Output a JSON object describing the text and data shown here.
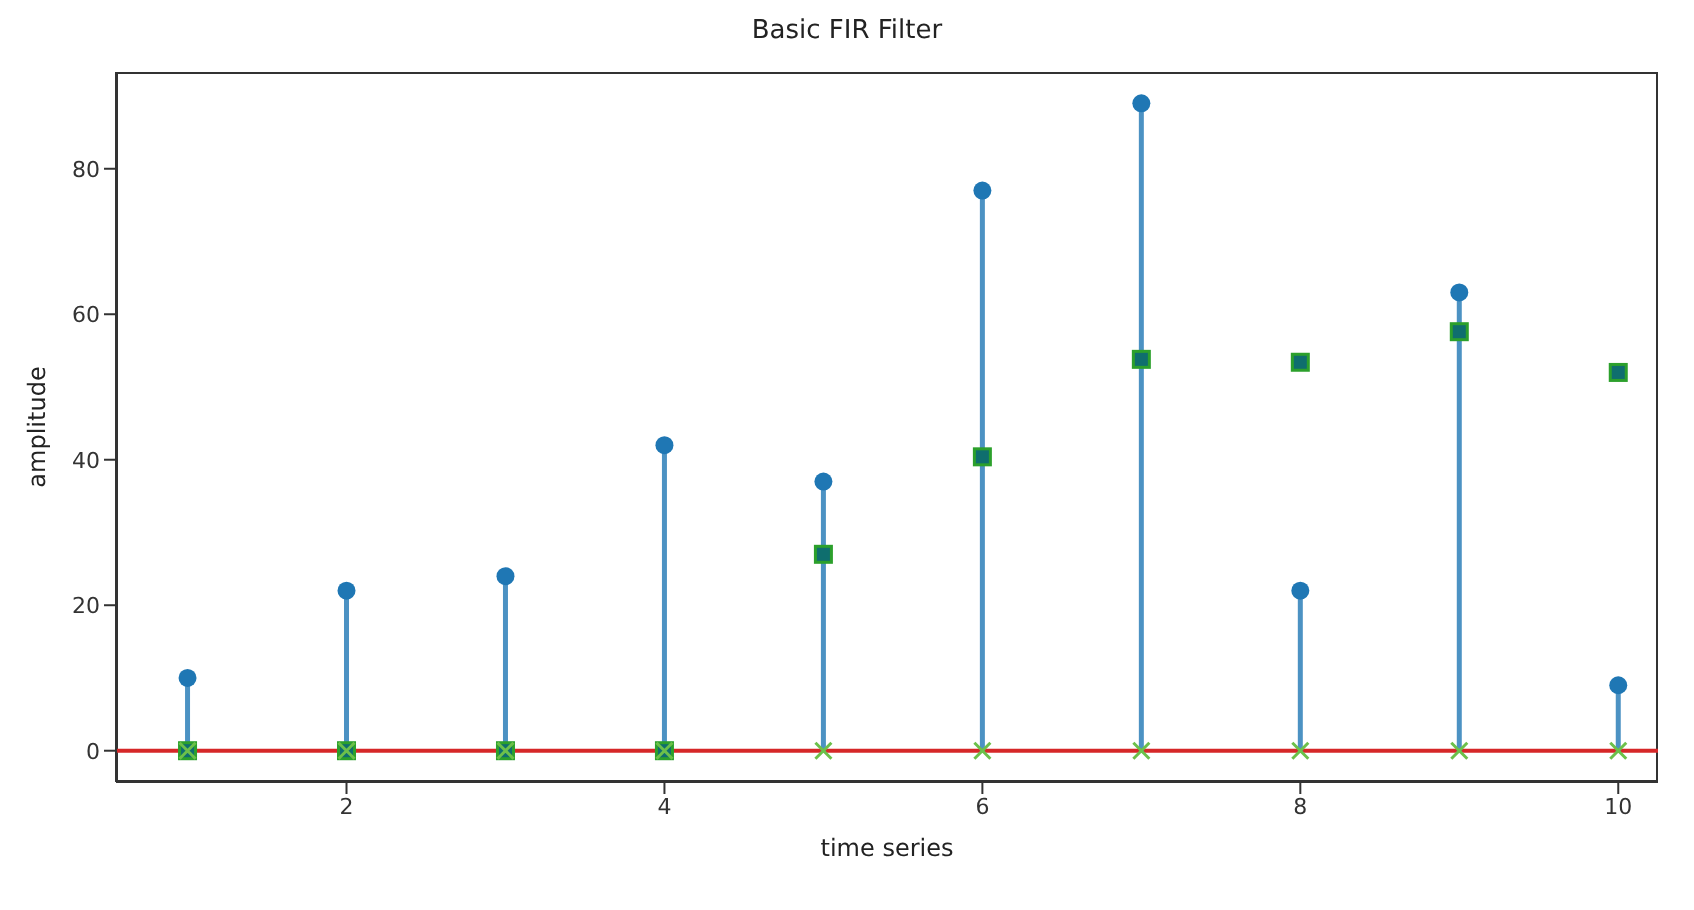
{
  "chart_data": {
    "type": "lollipop",
    "title": "Basic FIR Filter",
    "xlabel": "time series",
    "ylabel": "amplitude",
    "x": [
      1,
      2,
      3,
      4,
      5,
      6,
      7,
      8,
      9,
      10
    ],
    "series": [
      {
        "color": "#1f77b4",
        "marker": "circle",
        "values": [
          10,
          22,
          24,
          42,
          37,
          77,
          89,
          22,
          63,
          9
        ]
      },
      {
        "type": "scatter",
        "color": "#2ca02c",
        "marker": "square",
        "values": [
          0,
          0,
          0,
          0,
          27,
          40.4,
          53.8,
          53.4,
          57.6,
          52
        ]
      },
      {
        "type": "scatter",
        "color": "#6cc04a",
        "marker": "cross",
        "values": [
          0,
          0,
          0,
          0,
          0,
          0,
          0,
          0,
          0,
          0
        ]
      }
    ],
    "ref_lines": [
      {
        "axis": "y",
        "value": 0,
        "color": "#d62728"
      }
    ],
    "xlim": [
      0.55,
      10.25
    ],
    "xticks": [
      2,
      4,
      6,
      8,
      10
    ],
    "ylim": [
      -4.3,
      93.3
    ],
    "yticks": [
      0,
      20,
      40,
      60,
      80
    ]
  }
}
